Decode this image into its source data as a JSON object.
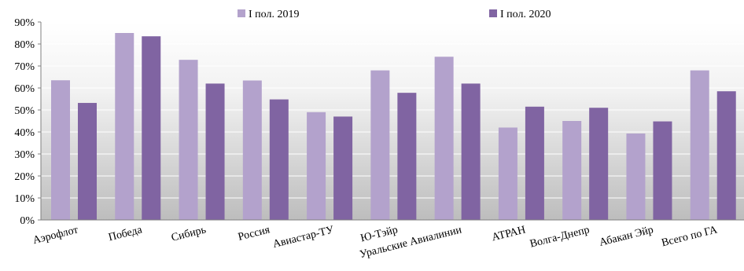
{
  "chart_data": {
    "type": "bar",
    "categories": [
      "Аэрофлот",
      "Победа",
      "Сибирь",
      "Россия",
      "Авиастар-ТУ",
      "Ю-Тэйр",
      "Уральские Авиалинии",
      "АТРАН",
      "Волга-Днепр",
      "Абакан Эйр",
      "Всего по ГА"
    ],
    "series": [
      {
        "name": "I пол. 2019",
        "color": "#b3a2cc",
        "values": [
          63.5,
          85,
          72.8,
          63.4,
          49,
          68,
          74.2,
          42,
          45,
          39.3,
          68
        ]
      },
      {
        "name": "I пол. 2020",
        "color": "#8064a2",
        "values": [
          53.2,
          83.5,
          62,
          54.8,
          47,
          57.8,
          62,
          51.5,
          51,
          44.8,
          58.5
        ]
      }
    ],
    "ylim": [
      0,
      90
    ],
    "y_ticks": [
      "0%",
      "10%",
      "20%",
      "30%",
      "40%",
      "50%",
      "60%",
      "70%",
      "80%",
      "90%"
    ],
    "legend_position": "top",
    "background": "gradient white to gray"
  }
}
